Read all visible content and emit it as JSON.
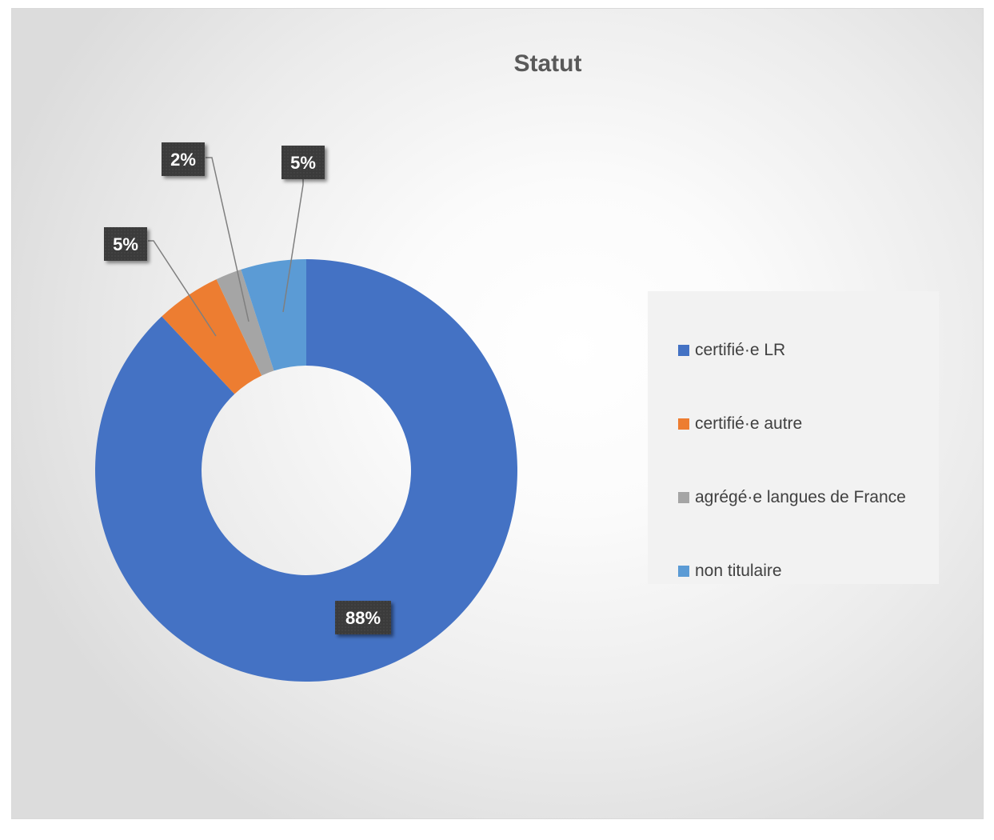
{
  "chart_data": {
    "type": "pie",
    "variant": "donut",
    "title": "Statut",
    "categories": [
      "certifié·e LR",
      "certifié·e autre",
      "agrégé·e langues de France",
      "non titulaire"
    ],
    "values": [
      88,
      5,
      2,
      5
    ],
    "data_labels": [
      "88%",
      "5%",
      "2%",
      "5%"
    ],
    "colors": [
      "#4472C4",
      "#ED7D31",
      "#A5A5A5",
      "#5B9BD5"
    ],
    "legend_position": "right",
    "start_angle_deg": 0,
    "direction": "clockwise"
  }
}
